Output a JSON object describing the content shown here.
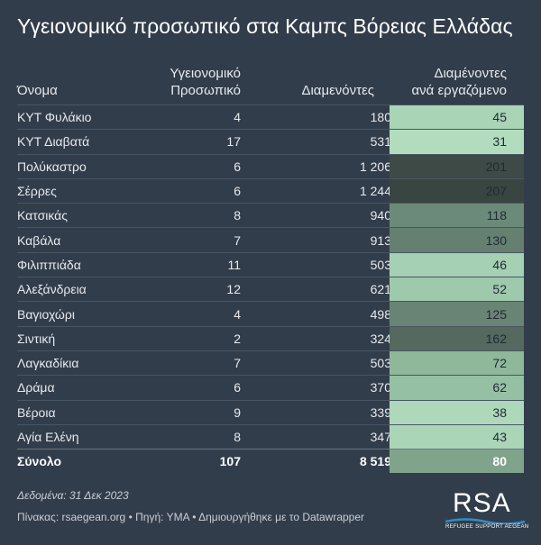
{
  "title": "Υγειονομικό προσωπικό στα Καμπς Βόρειας Ελλάδας",
  "headers": {
    "name": "Όνομα",
    "staff_line1": "Υγειονομικό",
    "staff_line2": "Προσωπικό",
    "residents": "Διαμενόντες",
    "ratio_line1": "Διαμένοντες",
    "ratio_line2": "ανά εργαζόμενο"
  },
  "rows": [
    {
      "name": "ΚΥΤ Φυλάκιο",
      "staff": "4",
      "residents": "180",
      "ratio": "45",
      "ratio_color": "#a9d4b6"
    },
    {
      "name": "ΚΥΤ Διαβατά",
      "staff": "17",
      "residents": "531",
      "ratio": "31",
      "ratio_color": "#b3dcbf"
    },
    {
      "name": "Πολύκαστρο",
      "staff": "6",
      "residents": "1 206",
      "ratio": "201",
      "ratio_color": "#3d4a45"
    },
    {
      "name": "Σέρρες",
      "staff": "6",
      "residents": "1 244",
      "ratio": "207",
      "ratio_color": "#384541"
    },
    {
      "name": "Κατσικάς",
      "staff": "8",
      "residents": "940",
      "ratio": "118",
      "ratio_color": "#6c8a7a"
    },
    {
      "name": "Καβάλα",
      "staff": "7",
      "residents": "913",
      "ratio": "130",
      "ratio_color": "#657f71"
    },
    {
      "name": "Φιλιππιάδα",
      "staff": "11",
      "residents": "503",
      "ratio": "46",
      "ratio_color": "#a6d0b3"
    },
    {
      "name": "Αλεξάνδρεια",
      "staff": "12",
      "residents": "621",
      "ratio": "52",
      "ratio_color": "#9fc9ac"
    },
    {
      "name": "Βαγιοχώρι",
      "staff": "4",
      "residents": "498",
      "ratio": "125",
      "ratio_color": "#698475"
    },
    {
      "name": "Σιντική",
      "staff": "2",
      "residents": "324",
      "ratio": "162",
      "ratio_color": "#55695f"
    },
    {
      "name": "Λαγκαδίκια",
      "staff": "7",
      "residents": "503",
      "ratio": "72",
      "ratio_color": "#8fb89b"
    },
    {
      "name": "Δράμα",
      "staff": "6",
      "residents": "370",
      "ratio": "62",
      "ratio_color": "#96c0a3"
    },
    {
      "name": "Βέροια",
      "staff": "9",
      "residents": "339",
      "ratio": "38",
      "ratio_color": "#aed8ba"
    },
    {
      "name": "Αγία Ελένη",
      "staff": "8",
      "residents": "347",
      "ratio": "43",
      "ratio_color": "#aad5b7"
    }
  ],
  "total": {
    "name": "Σύνολο",
    "staff": "107",
    "residents": "8 519",
    "ratio": "80",
    "ratio_color": "#7fa48b"
  },
  "footnote": "Δεδομένα: 31 Δεκ 2023",
  "source": "Πίνακας: rsaegean.org • Πηγή: ΥΜΑ • Δημιουργήθηκε με το Datawrapper",
  "logo": {
    "text": "RSA",
    "subtitle": "REFUGEE SUPPORT AEGEAN",
    "wave_color": "#2f8fc6"
  }
}
